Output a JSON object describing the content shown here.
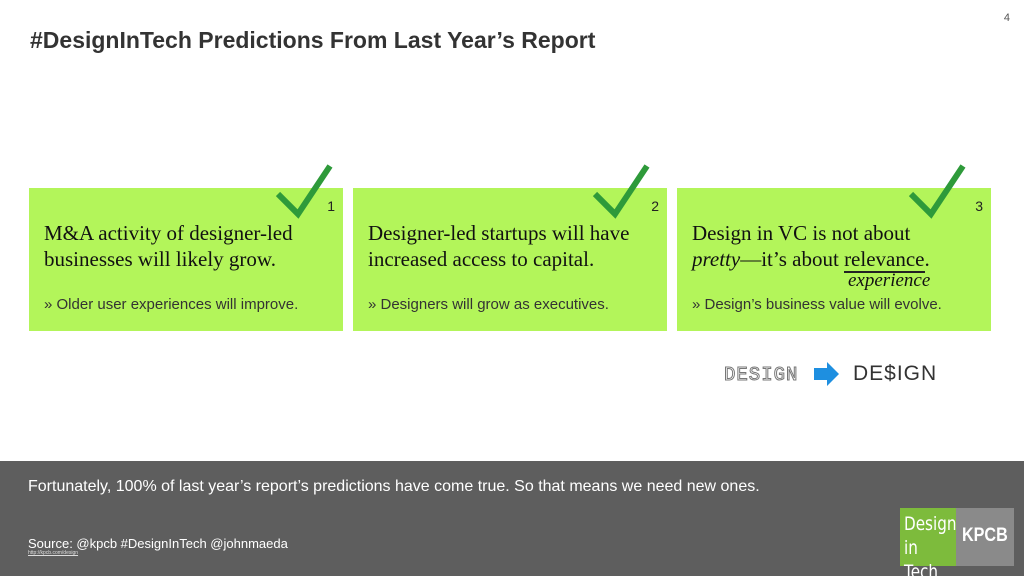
{
  "page_number": "4",
  "title": "#DesignInTech Predictions From Last Year’s Report",
  "cards": [
    {
      "number": "1",
      "headline": "M&A activity of designer-led businesses will likely grow.",
      "detail": "» Older user experiences will improve."
    },
    {
      "number": "2",
      "headline": "Designer-led startups will have increased access to capital.",
      "detail": "» Designers will grow as executives."
    },
    {
      "number": "3",
      "headline_parts": [
        "Design in VC is not about",
        "pretty",
        "—it’s about",
        "relevance",
        "."
      ],
      "correction": "experience",
      "detail": "» Design’s business value will evolve."
    }
  ],
  "graphic": {
    "from": "DESIGN",
    "to": "DE$IGN"
  },
  "footer": {
    "message": "Fortunately, 100% of last year’s report’s predictions have come true. So that means we need new ones.",
    "source": "Source: @kpcb #DesignInTech @johnmaeda",
    "link": "http://kpcb.com/design"
  },
  "logo": {
    "line1": "Design",
    "line2": "in Tech",
    "brand": "KPCB"
  }
}
